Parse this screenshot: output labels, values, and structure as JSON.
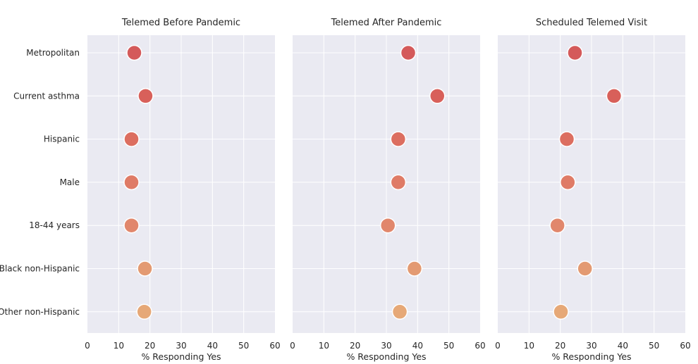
{
  "chart_data": {
    "type": "scatter",
    "categories": [
      "Metropolitan",
      "Current asthma",
      "Hispanic",
      "Male",
      "18-44 years",
      "Black non-Hispanic",
      "Other non-Hispanic"
    ],
    "xlim": [
      0,
      60
    ],
    "xticks": [
      0,
      10,
      20,
      30,
      40,
      50,
      60
    ],
    "xlabel": "% Responding Yes",
    "grid": true,
    "point_colors": [
      "#d45a5a",
      "#d8605a",
      "#dc6e60",
      "#df7b66",
      "#e1876c",
      "#e39a72",
      "#e6a877"
    ],
    "panels": [
      {
        "title": "Telemed Before Pandemic",
        "values": [
          15.0,
          18.6,
          14.1,
          14.1,
          14.1,
          18.4,
          18.2
        ]
      },
      {
        "title": "Telemed After Pandemic",
        "values": [
          37.0,
          46.3,
          33.8,
          33.8,
          30.5,
          39.0,
          34.3
        ]
      },
      {
        "title": "Scheduled Telemed Visit",
        "values": [
          24.7,
          37.2,
          22.1,
          22.4,
          19.1,
          27.9,
          20.2
        ]
      }
    ]
  }
}
